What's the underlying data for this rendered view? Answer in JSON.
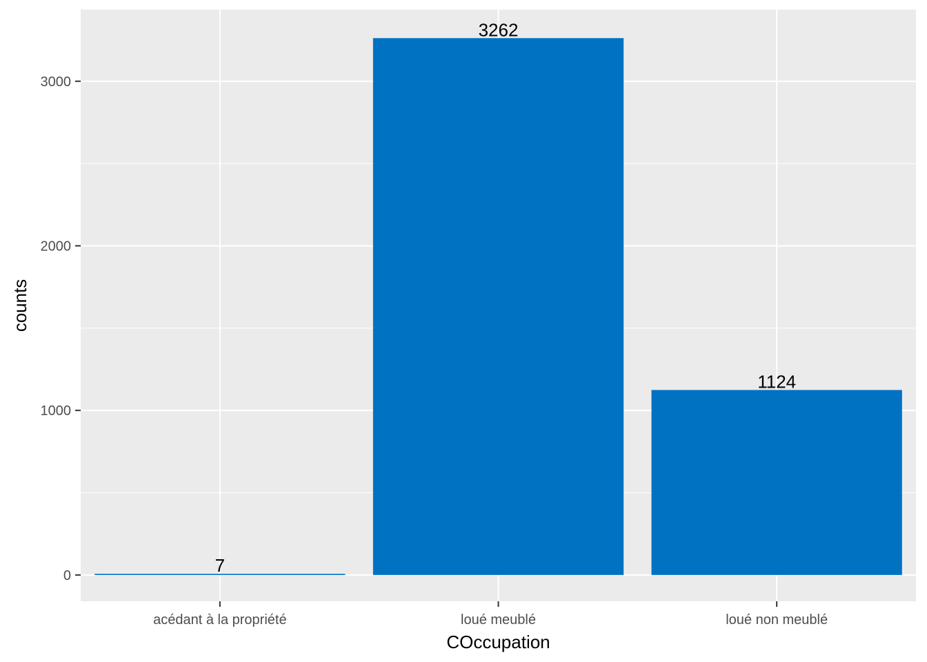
{
  "chart_data": {
    "type": "bar",
    "categories": [
      "acédant à la propriété",
      "loué meublé",
      "loué non meublé"
    ],
    "values": [
      7,
      3262,
      1124
    ],
    "data_labels": [
      "7",
      "3262",
      "1124"
    ],
    "xlabel": "COccupation",
    "ylabel": "counts",
    "ylim": [
      -160,
      3435
    ],
    "yticks": [
      0,
      1000,
      2000,
      3000
    ],
    "ytick_labels": [
      "0",
      "1000",
      "2000",
      "3000"
    ],
    "grid": true,
    "legend": "none",
    "colors": {
      "bar": "#0072C2",
      "panel": "#EBEBEB",
      "grid": "#FFFFFF"
    }
  }
}
